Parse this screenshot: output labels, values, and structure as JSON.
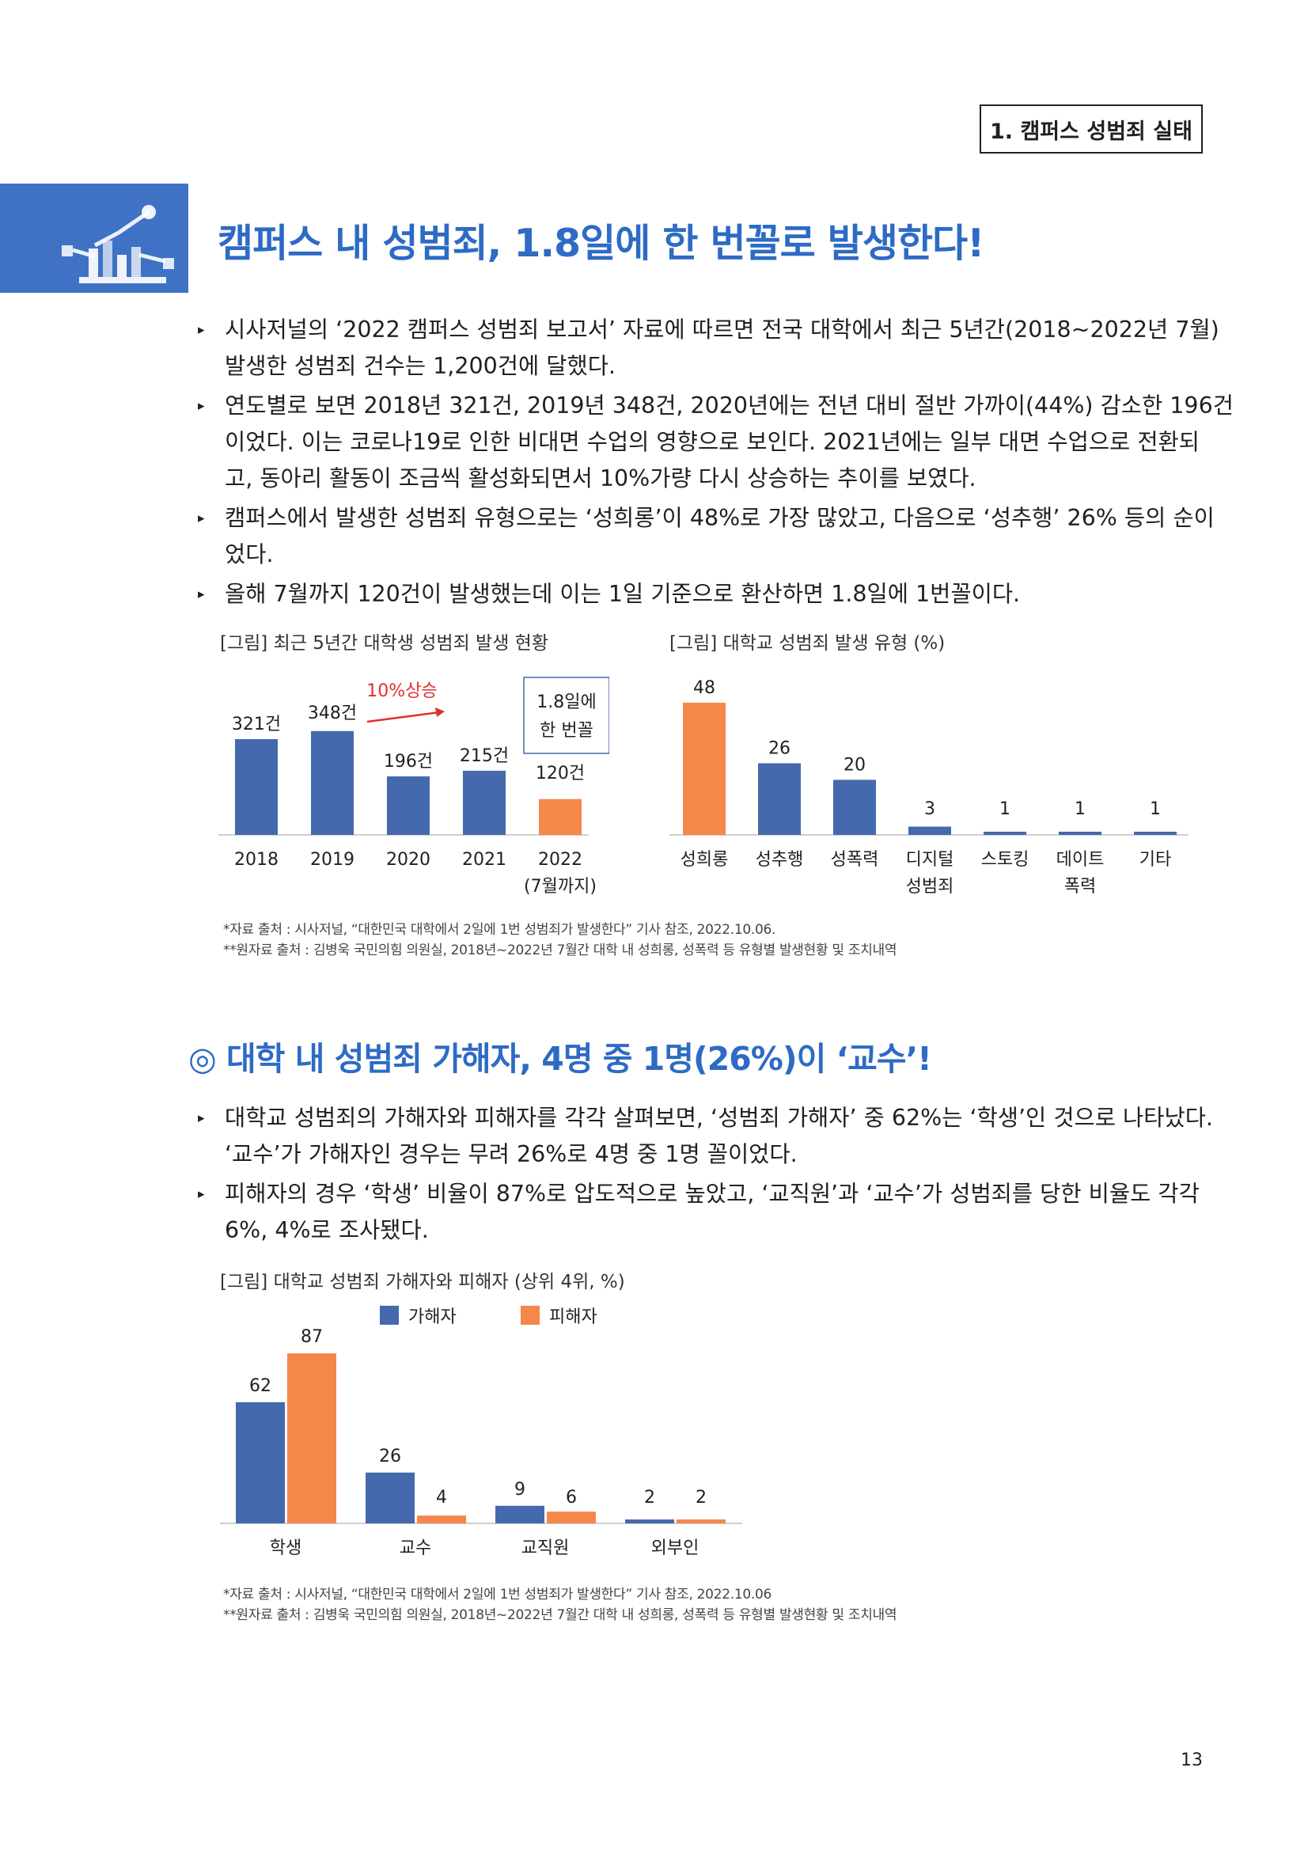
{
  "section_tag": "1. 캠퍼스 성범죄 실태",
  "heading1": "캠퍼스 내 성범죄, 1.8일에 한 번꼴로 발생한다!",
  "bullets1": [
    [
      "시사저널의 ‘2022 캠퍼스 성범죄 보고서’ 자료에 따르면 전국 대학에서 최근 5년간(2018~2022년 7월)",
      "발생한 성범죄 건수는 1,200건에 달했다."
    ],
    [
      "연도별로 보면 2018년 321건, 2019년 348건, 2020년에는 전년 대비 절반 가까이(44%) 감소한 196건",
      "이었다. 이는 코로나19로 인한 비대면 수업의 영향으로 보인다. 2021년에는 일부 대면 수업으로 전환되",
      "고, 동아리 활동이 조금씩 활성화되면서 10%가량 다시 상승하는 추이를 보였다."
    ],
    [
      "캠퍼스에서 발생한 성범죄 유형으로는 ‘성희롱’이 48%로 가장 많았고, 다음으로 ‘성추행’ 26% 등의 순이",
      "었다."
    ],
    [
      "올해 7월까지 120건이 발생했는데 이는 1일 기준으로 환산하면 1.8일에 1번꼴이다."
    ]
  ],
  "fig1_caption": "[그림] 최근 5년간 대학생 성범죄 발생 현황",
  "fig2_caption": "[그림] 대학교 성범죄 발생 유형 (%)",
  "fig3_caption": "[그림] 대학교 성범죄 가해자와 피해자 (상위 4위, %)",
  "notes1": [
    "*자료 출처 : 시사저널, “대한민국 대학에서 2일에 1번 성범죄가 발생한다” 기사 참조, 2022.10.06.",
    "**원자료 출처 : 김병욱 국민의힘 의원실, 2018년~2022년 7월간 대학 내 성희롱, 성폭력 등 유형별 발생현황 및 조치내역"
  ],
  "heading2": "◎ 대학 내 성범죄 가해자, 4명 중 1명(26%)이 ‘교수’!",
  "bullets2": [
    [
      "대학교 성범죄의 가해자와 피해자를 각각 살펴보면, ‘성범죄 가해자’ 중 62%는 ‘학생’인 것으로 나타났다.",
      "‘교수’가 가해자인 경우는 무려 26%로 4명 중 1명 꼴이었다."
    ],
    [
      "피해자의 경우 ‘학생’ 비율이 87%로 압도적으로 높았고, ‘교직원’과 ‘교수’가 성범죄를 당한 비율도 각각",
      "6%, 4%로 조사됐다."
    ]
  ],
  "notes2": [
    "*자료 출처 : 시사저널, “대한민국 대학에서 2일에 1번 성범죄가 발생한다” 기사 참조, 2022.10.06",
    "**원자료 출처 : 김병욱 국민의힘 의원실, 2018년~2022년 7월간 대학 내 성희롱, 성폭력 등 유형별 발생현황 및 조치내역"
  ],
  "page_number": "13",
  "colors": {
    "blue": "#4569ad",
    "orange": "#f5874a",
    "heading": "#2d6bc4",
    "red": "#e0302d"
  },
  "chart_data": [
    {
      "type": "bar",
      "categories": [
        "2018",
        "2019",
        "2020",
        "2021",
        "2022"
      ],
      "category_sublabels": [
        "",
        "",
        "",
        "",
        "(7월까지)"
      ],
      "values": [
        321,
        348,
        196,
        215,
        120
      ],
      "data_labels": [
        "321건",
        "348건",
        "196건",
        "215건",
        "120건"
      ],
      "bar_colors": [
        "#4569ad",
        "#4569ad",
        "#4569ad",
        "#4569ad",
        "#f5874a"
      ],
      "annotations": {
        "arrow_label": "10%상승",
        "box_line1": "1.8일에",
        "box_line2": "한 번꼴"
      }
    },
    {
      "type": "bar",
      "categories": [
        "성희롱",
        "성추행",
        "성폭력",
        "디지털",
        "스토킹",
        "데이트",
        "기타"
      ],
      "category_sublabels": [
        "",
        "",
        "",
        "성범죄",
        "",
        "폭력",
        ""
      ],
      "values": [
        48,
        26,
        20,
        3,
        1,
        1,
        1
      ],
      "data_labels": [
        "48",
        "26",
        "20",
        "3",
        "1",
        "1",
        "1"
      ],
      "bar_colors": [
        "#f5874a",
        "#4569ad",
        "#4569ad",
        "#4569ad",
        "#4569ad",
        "#4569ad",
        "#4569ad"
      ]
    },
    {
      "type": "bar",
      "categories": [
        "학생",
        "교수",
        "교직원",
        "외부인"
      ],
      "series": [
        {
          "name": "가해자",
          "values": [
            62,
            26,
            9,
            2
          ],
          "color": "#4569ad"
        },
        {
          "name": "피해자",
          "values": [
            87,
            4,
            6,
            2
          ],
          "color": "#f5874a"
        }
      ]
    }
  ]
}
